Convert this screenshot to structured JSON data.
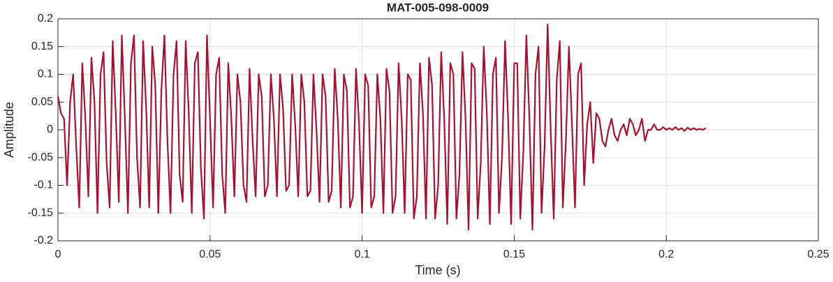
{
  "chart_data": {
    "type": "line",
    "title": "MAT-005-098-0009",
    "x_label": "Time (s)",
    "y_label": "Amplitude",
    "x": [
      0,
      0.001,
      0.002,
      0.003,
      0.004,
      0.005,
      0.006,
      0.007,
      0.008,
      0.009,
      0.01,
      0.011,
      0.012,
      0.013,
      0.014,
      0.015,
      0.016,
      0.017,
      0.018,
      0.019,
      0.02,
      0.021,
      0.022,
      0.023,
      0.024,
      0.025,
      0.026,
      0.027,
      0.028,
      0.029,
      0.03,
      0.031,
      0.032,
      0.033,
      0.034,
      0.035,
      0.036,
      0.037,
      0.038,
      0.039,
      0.04,
      0.041,
      0.042,
      0.043,
      0.044,
      0.045,
      0.046,
      0.047,
      0.048,
      0.049,
      0.05,
      0.051,
      0.052,
      0.053,
      0.054,
      0.055,
      0.056,
      0.057,
      0.058,
      0.059,
      0.06,
      0.061,
      0.062,
      0.063,
      0.064,
      0.065,
      0.066,
      0.067,
      0.068,
      0.069,
      0.07,
      0.071,
      0.072,
      0.073,
      0.074,
      0.075,
      0.076,
      0.077,
      0.078,
      0.079,
      0.08,
      0.081,
      0.082,
      0.083,
      0.084,
      0.085,
      0.086,
      0.087,
      0.088,
      0.089,
      0.09,
      0.091,
      0.092,
      0.093,
      0.094,
      0.095,
      0.096,
      0.097,
      0.098,
      0.099,
      0.1,
      0.101,
      0.102,
      0.103,
      0.104,
      0.105,
      0.106,
      0.107,
      0.108,
      0.109,
      0.11,
      0.111,
      0.112,
      0.113,
      0.114,
      0.115,
      0.116,
      0.117,
      0.118,
      0.119,
      0.12,
      0.121,
      0.122,
      0.123,
      0.124,
      0.125,
      0.126,
      0.127,
      0.128,
      0.129,
      0.13,
      0.131,
      0.132,
      0.133,
      0.134,
      0.135,
      0.136,
      0.137,
      0.138,
      0.139,
      0.14,
      0.141,
      0.142,
      0.143,
      0.144,
      0.145,
      0.146,
      0.147,
      0.148,
      0.149,
      0.15,
      0.151,
      0.152,
      0.153,
      0.154,
      0.155,
      0.156,
      0.157,
      0.158,
      0.159,
      0.16,
      0.161,
      0.162,
      0.163,
      0.164,
      0.165,
      0.166,
      0.167,
      0.168,
      0.169,
      0.17,
      0.171,
      0.172,
      0.173,
      0.174,
      0.175,
      0.176,
      0.177,
      0.178,
      0.179,
      0.18,
      0.181,
      0.182,
      0.183,
      0.184,
      0.185,
      0.186,
      0.187,
      0.188,
      0.189,
      0.19,
      0.191,
      0.192,
      0.193,
      0.194,
      0.195,
      0.196,
      0.197,
      0.198,
      0.199,
      0.2,
      0.201,
      0.202,
      0.203,
      0.204,
      0.205,
      0.206,
      0.207,
      0.208,
      0.209,
      0.21,
      0.211,
      0.212,
      0.213
    ],
    "series": [
      {
        "color": "#a2142f",
        "values": [
          0.06,
          0.03,
          0.02,
          -0.1,
          0.05,
          0.1,
          -0.03,
          -0.14,
          0.12,
          0.02,
          -0.12,
          0.13,
          0.05,
          -0.15,
          0.1,
          0.14,
          -0.06,
          -0.14,
          0.16,
          0.03,
          -0.13,
          0.17,
          0.02,
          -0.15,
          0.12,
          0.17,
          -0.05,
          -0.14,
          0.16,
          0.04,
          -0.14,
          0.15,
          0.08,
          -0.15,
          0.07,
          0.17,
          -0.02,
          -0.15,
          0.1,
          0.16,
          -0.08,
          -0.13,
          0.16,
          0.03,
          -0.15,
          0.12,
          0.14,
          -0.07,
          -0.16,
          0.17,
          0.02,
          -0.14,
          0.1,
          0.13,
          -0.08,
          -0.15,
          0.12,
          0.02,
          -0.12,
          0.1,
          0.05,
          -0.1,
          -0.13,
          0.11,
          -0.02,
          -0.12,
          0.1,
          0.06,
          -0.12,
          -0.1,
          0.1,
          0.02,
          -0.12,
          0.1,
          0.04,
          -0.11,
          -0.1,
          0.1,
          0.01,
          -0.12,
          0.1,
          0.05,
          -0.12,
          -0.11,
          0.1,
          0.0,
          -0.13,
          0.1,
          0.06,
          -0.13,
          -0.11,
          0.11,
          0.02,
          -0.14,
          0.1,
          0.07,
          -0.14,
          -0.12,
          0.11,
          0.01,
          -0.15,
          0.1,
          0.08,
          -0.14,
          -0.12,
          0.1,
          0.02,
          -0.15,
          0.11,
          0.07,
          -0.15,
          -0.12,
          0.12,
          0.02,
          -0.15,
          0.1,
          0.09,
          -0.16,
          -0.12,
          0.12,
          0.03,
          -0.16,
          0.13,
          0.08,
          -0.16,
          -0.1,
          0.14,
          0.02,
          -0.17,
          0.12,
          0.1,
          -0.16,
          -0.08,
          0.14,
          0.02,
          -0.18,
          0.12,
          0.11,
          -0.16,
          -0.06,
          0.15,
          0.03,
          -0.17,
          0.1,
          0.13,
          -0.15,
          -0.05,
          0.16,
          0.02,
          -0.17,
          0.12,
          0.12,
          -0.16,
          -0.04,
          0.17,
          0.02,
          -0.18,
          0.1,
          0.15,
          -0.15,
          -0.03,
          0.19,
          0.0,
          -0.16,
          0.09,
          0.16,
          -0.14,
          -0.02,
          0.15,
          0.01,
          -0.14,
          0.1,
          0.12,
          -0.1,
          0.01,
          0.05,
          -0.06,
          0.03,
          0.02,
          -0.02,
          -0.03,
          0.0,
          0.02,
          -0.01,
          -0.02,
          0.0,
          0.01,
          -0.01,
          0.02,
          0.01,
          -0.01,
          0.0,
          0.02,
          -0.02,
          0.0,
          0.0,
          0.01,
          0.0,
          0.0,
          0.005,
          0.0,
          0.003,
          0.0,
          0.005,
          0.0,
          0.003,
          -0.002,
          0.004,
          0.0,
          0.003,
          0.0,
          0.002,
          0.0,
          0.003
        ]
      }
    ],
    "xlim": [
      0,
      0.25
    ],
    "xticks": [
      0,
      0.05,
      0.1,
      0.15,
      0.2,
      0.25
    ],
    "ylim": [
      -0.2,
      0.2
    ],
    "yticks": [
      -0.2,
      -0.15,
      -0.1,
      -0.05,
      0,
      0.05,
      0.1,
      0.15,
      0.2
    ],
    "grid": true
  }
}
